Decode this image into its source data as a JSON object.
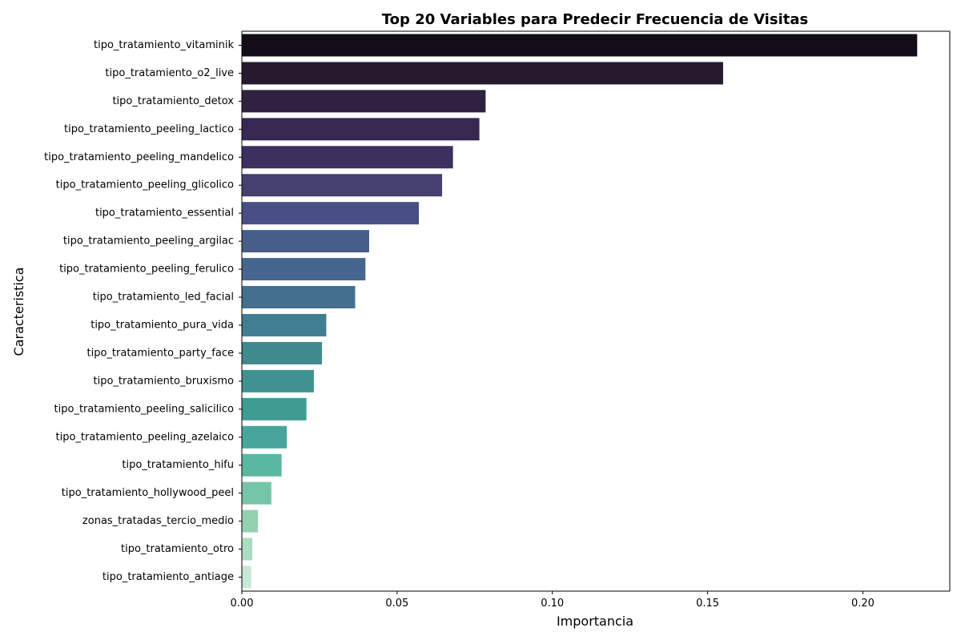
{
  "chart_data": {
    "type": "bar",
    "orientation": "horizontal",
    "title": "Top 20 Variables para Predecir Frecuencia de Visitas",
    "xlabel": "Importancia",
    "ylabel": "Caracteristica",
    "xlim": [
      0,
      0.228
    ],
    "xticks": [
      "0.00",
      "0.05",
      "0.10",
      "0.15",
      "0.20"
    ],
    "grid": false,
    "legend": "none",
    "palette": "mako (dark to light)",
    "categories": [
      "tipo_tratamiento_vitaminik",
      "tipo_tratamiento_o2_live",
      "tipo_tratamiento_detox",
      "tipo_tratamiento_peeling_lactico",
      "tipo_tratamiento_peeling_mandelico",
      "tipo_tratamiento_peeling_glicolico",
      "tipo_tratamiento_essential",
      "tipo_tratamiento_peeling_argilac",
      "tipo_tratamiento_peeling_ferulico",
      "tipo_tratamiento_led_facial",
      "tipo_tratamiento_pura_vida",
      "tipo_tratamiento_party_face",
      "tipo_tratamiento_bruxismo",
      "tipo_tratamiento_peeling_salicilico",
      "tipo_tratamiento_peeling_azelaico",
      "tipo_tratamiento_hifu",
      "tipo_tratamiento_hollywood_peel",
      "zonas_tratadas_tercio_medio",
      "tipo_tratamiento_otro",
      "tipo_tratamiento_antiage"
    ],
    "values": [
      0.2175,
      0.155,
      0.0785,
      0.0765,
      0.068,
      0.0645,
      0.057,
      0.041,
      0.0398,
      0.0365,
      0.0272,
      0.0258,
      0.0232,
      0.0208,
      0.0145,
      0.0128,
      0.0095,
      0.0052,
      0.0034,
      0.003
    ],
    "colors": [
      "#140d17",
      "#261a2f",
      "#2f2140",
      "#372851",
      "#3d2f5e",
      "#45406f",
      "#474f84",
      "#475d8a",
      "#46658f",
      "#43708e",
      "#417e90",
      "#40898f",
      "#3f928f",
      "#3f9c91",
      "#48a59d",
      "#5ab8a2",
      "#77c5a8",
      "#93d2b1",
      "#acdcc2",
      "#c6e8d5"
    ]
  }
}
